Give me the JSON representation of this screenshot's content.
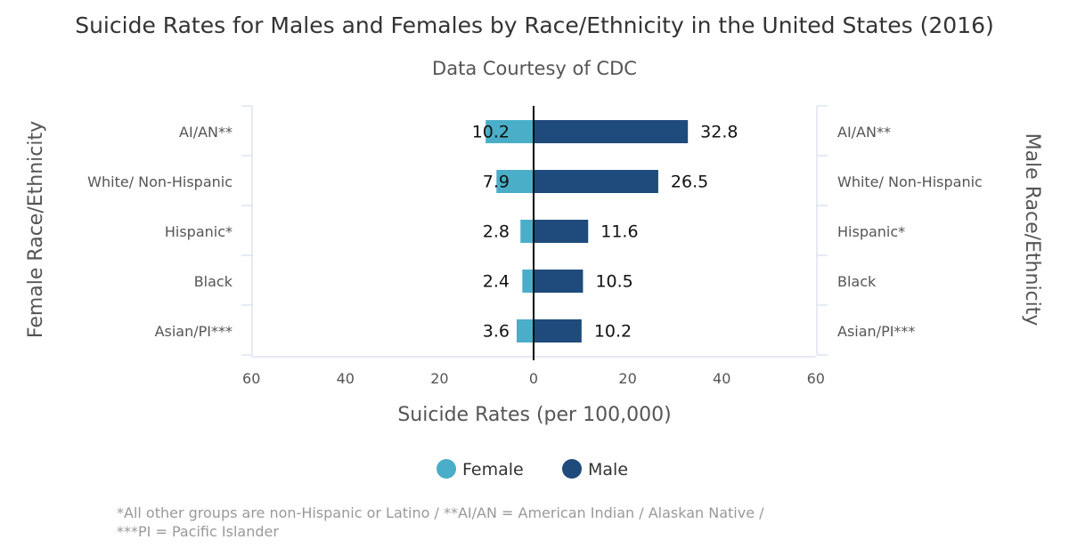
{
  "chart_data": {
    "type": "bar",
    "title": "Suicide Rates for Males and Females by Race/Ethnicity in the United States (2016)",
    "subtitle": "Data Courtesy of CDC",
    "categories": [
      "AI/AN**",
      "White/ Non-Hispanic",
      "Hispanic*",
      "Black",
      "Asian/PI***"
    ],
    "series": [
      {
        "name": "Female",
        "color": "#4aaec8",
        "values": [
          10.2,
          7.9,
          2.8,
          2.4,
          3.6
        ]
      },
      {
        "name": "Male",
        "color": "#1f4a7c",
        "values": [
          32.8,
          26.5,
          11.6,
          10.5,
          10.2
        ]
      }
    ],
    "xlabel": "Suicide Rates (per 100,000)",
    "ylabel_left": "Female Race/Ethnicity",
    "ylabel_right": "Male Race/Ethnicity",
    "xlim": [
      -60,
      60
    ],
    "x_ticks": [
      -60,
      -40,
      -20,
      0,
      20,
      40,
      60
    ],
    "x_tick_labels": [
      "60",
      "40",
      "20",
      "0",
      "20",
      "40",
      "60"
    ],
    "orientation": "horizontal-diverging",
    "legend_position": "bottom",
    "grid": false
  },
  "footnote": {
    "line1": "*All other groups are non-Hispanic or Latino / **AI/AN = American Indian / Alaskan Native /",
    "line2": "***PI = Pacific Islander"
  }
}
